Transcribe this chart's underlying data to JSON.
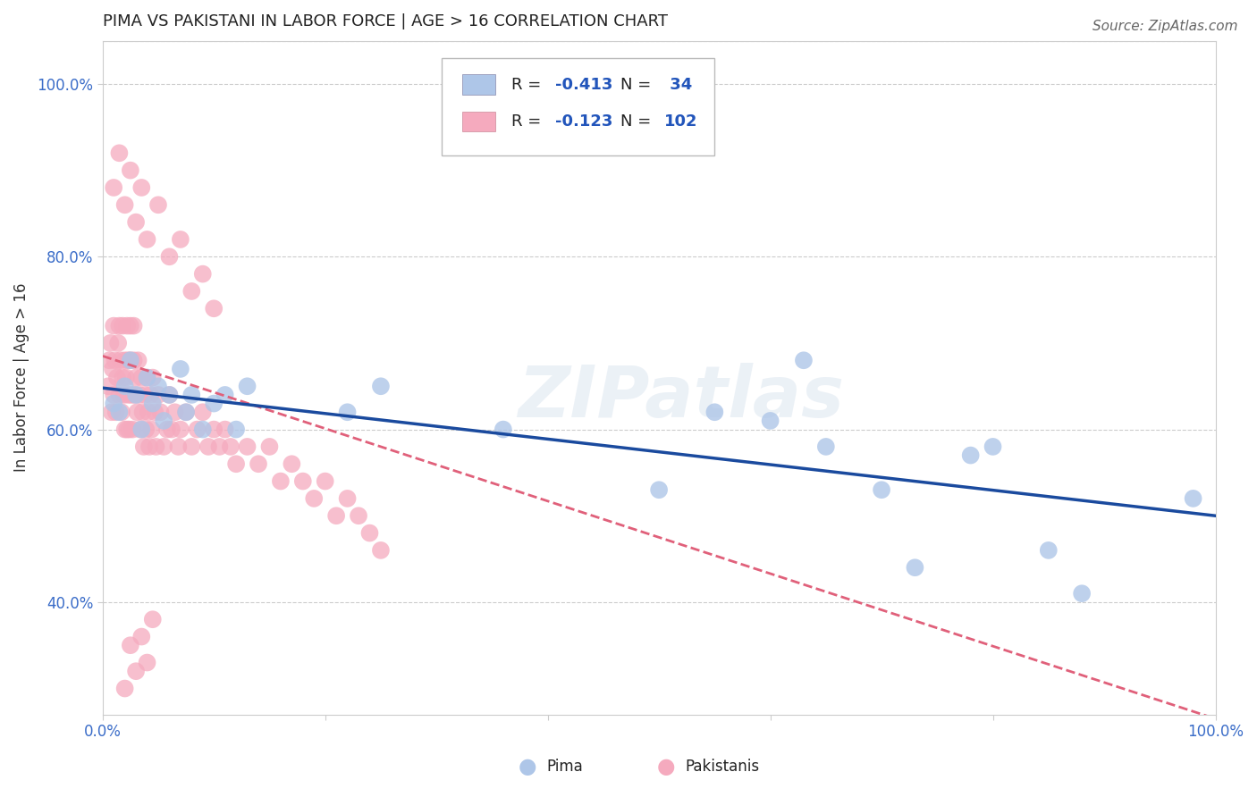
{
  "title": "PIMA VS PAKISTANI IN LABOR FORCE | AGE > 16 CORRELATION CHART",
  "source_text": "Source: ZipAtlas.com",
  "ylabel": "In Labor Force | Age > 16",
  "watermark": "ZIPatlas",
  "pima_R": -0.413,
  "pima_N": 34,
  "pakistani_R": -0.123,
  "pakistani_N": 102,
  "pima_color": "#aec6e8",
  "pakistani_color": "#f5aabe",
  "pima_line_color": "#1a4a9e",
  "pakistani_line_color": "#e0607a",
  "background_color": "#ffffff",
  "grid_color": "#cccccc",
  "xlim": [
    0.0,
    1.0
  ],
  "ylim": [
    0.27,
    1.05
  ],
  "x_ticks": [
    0.0,
    0.2,
    0.4,
    0.6,
    0.8,
    1.0
  ],
  "x_tick_labels": [
    "0.0%",
    "",
    "",
    "",
    "",
    "100.0%"
  ],
  "y_ticks": [
    0.4,
    0.6,
    0.8,
    1.0
  ],
  "y_tick_labels": [
    "40.0%",
    "60.0%",
    "80.0%",
    "100.0%"
  ],
  "pima_x": [
    0.01,
    0.015,
    0.02,
    0.025,
    0.03,
    0.035,
    0.04,
    0.045,
    0.05,
    0.055,
    0.06,
    0.07,
    0.075,
    0.08,
    0.09,
    0.1,
    0.11,
    0.12,
    0.13,
    0.22,
    0.25,
    0.36,
    0.5,
    0.55,
    0.6,
    0.63,
    0.65,
    0.7,
    0.73,
    0.78,
    0.8,
    0.85,
    0.88,
    0.98
  ],
  "pima_y": [
    0.63,
    0.62,
    0.65,
    0.68,
    0.64,
    0.6,
    0.66,
    0.63,
    0.65,
    0.61,
    0.64,
    0.67,
    0.62,
    0.64,
    0.6,
    0.63,
    0.64,
    0.6,
    0.65,
    0.62,
    0.65,
    0.6,
    0.53,
    0.62,
    0.61,
    0.68,
    0.58,
    0.53,
    0.44,
    0.57,
    0.58,
    0.46,
    0.41,
    0.52
  ],
  "pak_x": [
    0.005,
    0.006,
    0.007,
    0.008,
    0.009,
    0.01,
    0.01,
    0.011,
    0.012,
    0.013,
    0.014,
    0.015,
    0.015,
    0.016,
    0.017,
    0.018,
    0.018,
    0.019,
    0.02,
    0.02,
    0.021,
    0.022,
    0.022,
    0.023,
    0.023,
    0.024,
    0.025,
    0.025,
    0.026,
    0.027,
    0.028,
    0.028,
    0.029,
    0.03,
    0.031,
    0.032,
    0.033,
    0.034,
    0.035,
    0.036,
    0.037,
    0.038,
    0.039,
    0.04,
    0.041,
    0.042,
    0.043,
    0.044,
    0.045,
    0.047,
    0.048,
    0.05,
    0.052,
    0.055,
    0.058,
    0.06,
    0.062,
    0.065,
    0.068,
    0.07,
    0.075,
    0.08,
    0.085,
    0.09,
    0.095,
    0.1,
    0.105,
    0.11,
    0.115,
    0.12,
    0.13,
    0.14,
    0.15,
    0.16,
    0.17,
    0.18,
    0.19,
    0.2,
    0.21,
    0.22,
    0.23,
    0.24,
    0.25,
    0.01,
    0.015,
    0.02,
    0.025,
    0.03,
    0.035,
    0.04,
    0.05,
    0.06,
    0.07,
    0.08,
    0.09,
    0.1,
    0.02,
    0.025,
    0.03,
    0.035,
    0.04,
    0.045
  ],
  "pak_y": [
    0.65,
    0.68,
    0.7,
    0.62,
    0.67,
    0.64,
    0.72,
    0.68,
    0.62,
    0.66,
    0.7,
    0.64,
    0.72,
    0.68,
    0.62,
    0.66,
    0.72,
    0.64,
    0.68,
    0.6,
    0.66,
    0.72,
    0.6,
    0.68,
    0.64,
    0.6,
    0.68,
    0.72,
    0.64,
    0.6,
    0.68,
    0.72,
    0.64,
    0.66,
    0.62,
    0.68,
    0.64,
    0.6,
    0.66,
    0.62,
    0.58,
    0.64,
    0.6,
    0.66,
    0.62,
    0.58,
    0.64,
    0.6,
    0.66,
    0.62,
    0.58,
    0.64,
    0.62,
    0.58,
    0.6,
    0.64,
    0.6,
    0.62,
    0.58,
    0.6,
    0.62,
    0.58,
    0.6,
    0.62,
    0.58,
    0.6,
    0.58,
    0.6,
    0.58,
    0.56,
    0.58,
    0.56,
    0.58,
    0.54,
    0.56,
    0.54,
    0.52,
    0.54,
    0.5,
    0.52,
    0.5,
    0.48,
    0.46,
    0.88,
    0.92,
    0.86,
    0.9,
    0.84,
    0.88,
    0.82,
    0.86,
    0.8,
    0.82,
    0.76,
    0.78,
    0.74,
    0.3,
    0.35,
    0.32,
    0.36,
    0.33,
    0.38
  ],
  "title_fontsize": 13,
  "tick_fontsize": 12,
  "ylabel_fontsize": 12,
  "source_fontsize": 11,
  "legend_fontsize": 13,
  "pima_line_intercept": 0.648,
  "pima_line_slope": -0.148,
  "pak_line_intercept": 0.685,
  "pak_line_slope": -0.42
}
